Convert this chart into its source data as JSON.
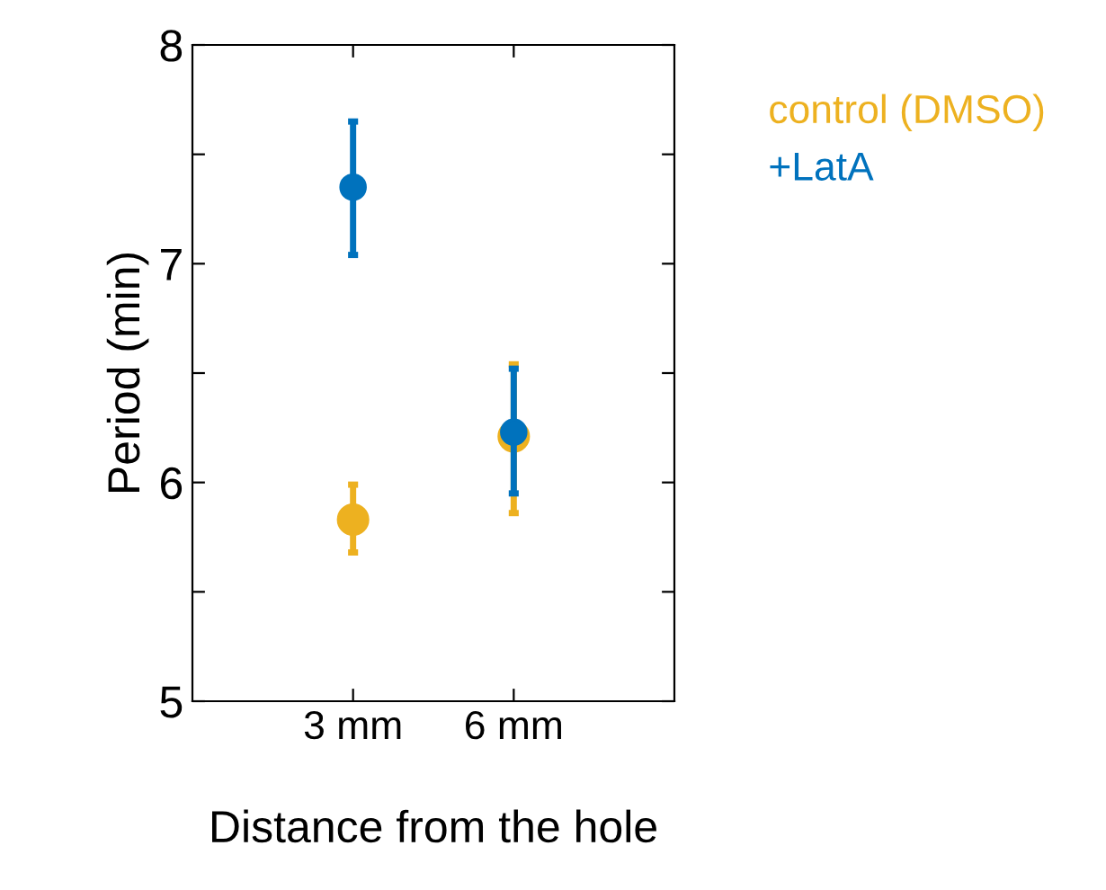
{
  "chart_data": {
    "type": "scatter",
    "xlabel": "Distance from the hole",
    "ylabel": "Period (min)",
    "categories": [
      "3 mm",
      "6 mm"
    ],
    "series": [
      {
        "name": "control (DMSO)",
        "color": "#edb120",
        "values": [
          5.83,
          6.21
        ],
        "errors": [
          [
            5.68,
            5.99
          ],
          [
            5.86,
            6.54
          ]
        ]
      },
      {
        "name": "+LatA",
        "color": "#0072bd",
        "values": [
          7.35,
          6.23
        ],
        "errors": [
          [
            7.04,
            7.65
          ],
          [
            5.95,
            6.52
          ]
        ]
      }
    ],
    "ylim": [
      5,
      8
    ],
    "yticks": [
      5,
      {
        "value": 5.5,
        "label": null
      },
      6,
      {
        "value": 6.5,
        "label": null
      },
      7,
      {
        "value": 7.5,
        "label": null
      },
      8
    ],
    "marker": "circle",
    "legend": "right",
    "grid": false
  }
}
